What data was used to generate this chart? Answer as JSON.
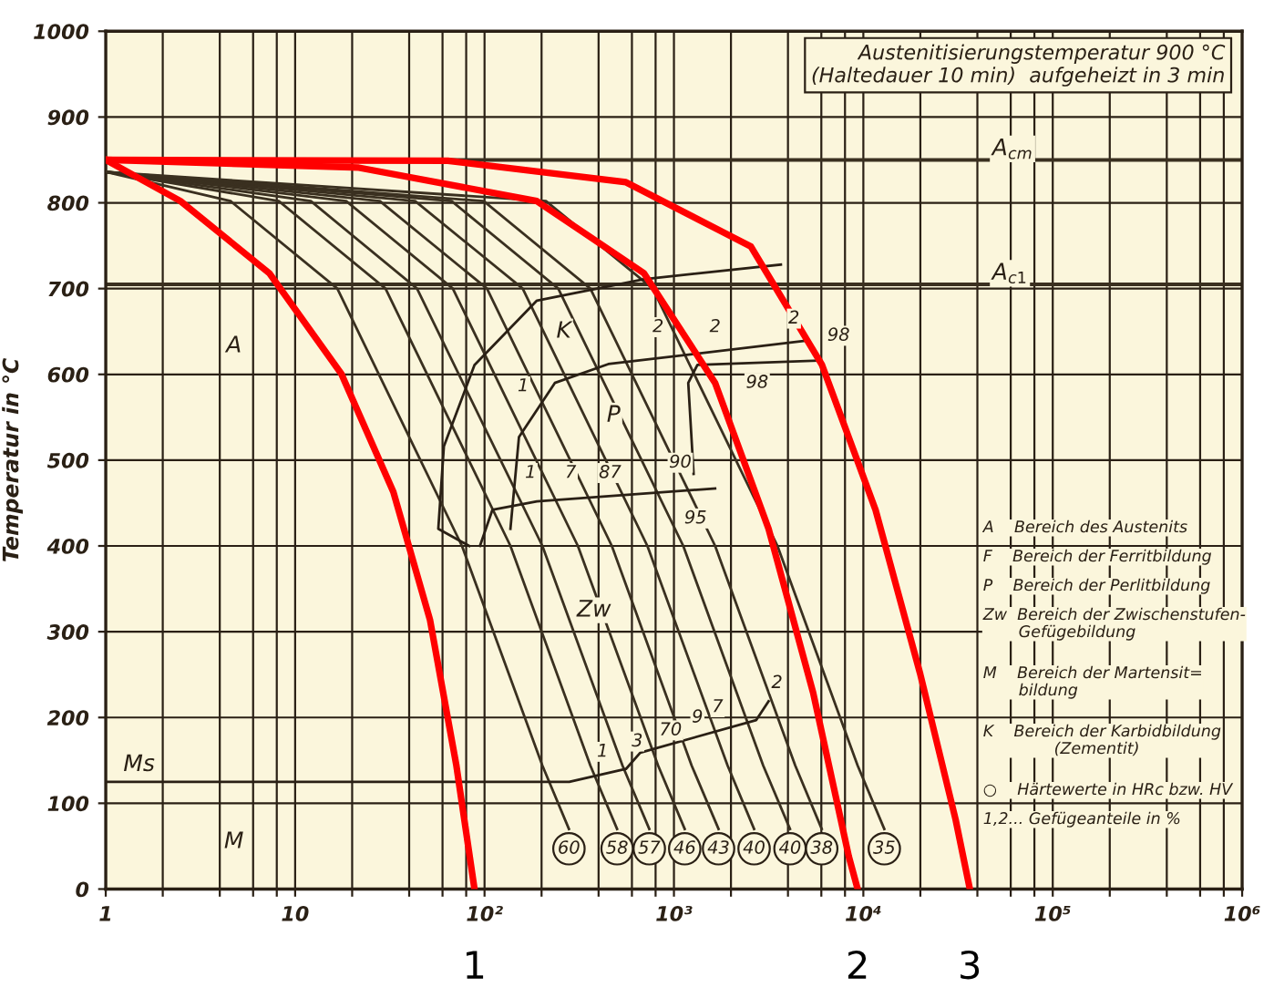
{
  "chart_data": {
    "type": "line",
    "ylabel": "Temperatur in °C",
    "log": "x",
    "grid": true,
    "legend": false,
    "xlim": [
      1,
      1000000
    ],
    "ylim": [
      0,
      1000
    ],
    "xticks": [
      1,
      {
        "value": 2,
        "label": null
      },
      {
        "value": 4,
        "label": null
      },
      {
        "value": 6,
        "label": null
      },
      {
        "value": 8,
        "label": null
      },
      10,
      {
        "value": 20,
        "label": null
      },
      {
        "value": 40,
        "label": null
      },
      {
        "value": 60,
        "label": null
      },
      {
        "value": 80,
        "label": null
      },
      {
        "value": 100,
        "label": "10²"
      },
      {
        "value": 200,
        "label": null
      },
      {
        "value": 400,
        "label": null
      },
      {
        "value": 600,
        "label": null
      },
      {
        "value": 800,
        "label": null
      },
      {
        "value": 1000,
        "label": "10³"
      },
      {
        "value": 2000,
        "label": null
      },
      {
        "value": 4000,
        "label": null
      },
      {
        "value": 6000,
        "label": null
      },
      {
        "value": 8000,
        "label": null
      },
      {
        "value": 10000,
        "label": "10⁴"
      },
      {
        "value": 20000,
        "label": null
      },
      {
        "value": 40000,
        "label": null
      },
      {
        "value": 60000,
        "label": null
      },
      {
        "value": 80000,
        "label": null
      },
      {
        "value": 100000,
        "label": "10⁵"
      },
      {
        "value": 200000,
        "label": null
      },
      {
        "value": 400000,
        "label": null
      },
      {
        "value": 600000,
        "label": null
      },
      {
        "value": 800000,
        "label": null
      },
      {
        "value": 1000000,
        "label": "10⁶"
      }
    ],
    "yticks": [
      0,
      100,
      200,
      300,
      400,
      500,
      600,
      700,
      800,
      900,
      1000
    ],
    "series": [
      {
        "color": "#3a3020",
        "x": [
          1,
          4.56,
          16.7,
          76,
          202,
          279
        ],
        "values": [
          836,
          802,
          700,
          400,
          144,
          70
        ]
      },
      {
        "color": "#3a3020",
        "x": [
          1,
          8.2,
          30,
          137,
          362,
          501
        ],
        "values": [
          836,
          802,
          700,
          400,
          144,
          70
        ]
      },
      {
        "color": "#3a3020",
        "x": [
          1,
          12.1,
          44,
          202,
          535,
          741
        ],
        "values": [
          836,
          802,
          700,
          400,
          144,
          70
        ]
      },
      {
        "color": "#3a3020",
        "x": [
          1,
          18.6,
          68,
          311,
          825,
          1140
        ],
        "values": [
          836,
          802,
          700,
          400,
          144,
          70
        ]
      },
      {
        "color": "#3a3020",
        "x": [
          1,
          28,
          103,
          470,
          1240,
          1720
        ],
        "values": [
          836,
          802,
          700,
          400,
          144,
          70
        ]
      },
      {
        "color": "#3a3020",
        "x": [
          1,
          43,
          159,
          724,
          1920,
          2650
        ],
        "values": [
          836,
          802,
          700,
          400,
          144,
          70
        ]
      },
      {
        "color": "#3a3020",
        "x": [
          1,
          67,
          245,
          1120,
          2960,
          4100
        ],
        "values": [
          836,
          802,
          700,
          400,
          144,
          70
        ]
      },
      {
        "color": "#3a3020",
        "x": [
          1,
          99,
          362,
          1650,
          4370,
          6030
        ],
        "values": [
          836,
          802,
          700,
          400,
          144,
          70
        ]
      },
      {
        "color": "#3a3020",
        "x": [
          1,
          211,
          773,
          3520,
          9330,
          12900
        ],
        "values": [
          836,
          802,
          700,
          400,
          144,
          70
        ]
      },
      {
        "color": "#2a2015",
        "x": [
          3670,
          694,
          189,
          88.5,
          61,
          57,
          83
        ],
        "values": [
          728,
          711,
          686,
          611,
          516,
          420,
          400
        ]
      },
      {
        "color": "#2a2015",
        "x": [
          137,
          152,
          235,
          450,
          4870
        ],
        "values": [
          420,
          527,
          590,
          612,
          639
        ]
      },
      {
        "color": "#2a2015",
        "x": [
          94.6,
          110,
          189,
          1650
        ],
        "values": [
          400,
          442,
          452,
          467
        ]
      },
      {
        "color": "#2a2015",
        "x": [
          5790,
          1330,
          1190,
          1270
        ],
        "values": [
          616,
          611,
          590,
          484
        ]
      },
      {
        "color": "#2a2015",
        "x": [
          1,
          280,
          558,
          664,
          2720,
          3160
        ],
        "values": [
          125,
          125,
          140,
          159,
          197,
          219
        ]
      },
      {
        "name": "1",
        "color": "#ff0000",
        "x": [
          1,
          2.48,
          7.3,
          17.5,
          33,
          51.5,
          71,
          88.5
        ],
        "values": [
          850,
          802,
          718,
          601,
          463,
          314,
          144,
          0
        ]
      },
      {
        "name": "2",
        "color": "#ff0000",
        "x": [
          1,
          21.7,
          189,
          694,
          1650,
          3160,
          5430,
          8380,
          9330
        ],
        "values": [
          850,
          841,
          802,
          718,
          590,
          420,
          229,
          38,
          0
        ]
      },
      {
        "name": "3",
        "color": "#ff0000",
        "x": [
          1,
          64,
          558,
          2550,
          6050,
          11600,
          19950,
          30700,
          36500
        ],
        "values": [
          850,
          849,
          824,
          749,
          611,
          442,
          251,
          81,
          0
        ]
      }
    ],
    "ref_lines": [
      {
        "axis": "y",
        "value": 850,
        "label": "A$_{cm}$",
        "color": "#3a3020"
      },
      {
        "axis": "y",
        "value": 705,
        "label": "A$_{c1}$",
        "color": "#3a3020"
      }
    ],
    "annotations": [
      "Austenitisierungstemperatur 900 °C\n(Haltedauer 10 min)  aufgeheizt in 3 min",
      "A    Bereich des Austenits",
      "F    Bereich der Ferritbildung",
      "P    Bereich der Perlitbildung",
      "Zw  Bereich der Zwischenstufen-\n       Gefügebildung",
      "M    Bereich der Martensit=\n       bildung",
      "K    Bereich der Karbidbildung\n              (Zementit)",
      "○    Härtewerte in HRc bzw. HV",
      "1,2... Gefügeanteile in %",
      "A",
      "K",
      "P",
      "Zw",
      "M",
      "Ms",
      "1",
      "1",
      "7",
      "87",
      "2",
      "2",
      "2",
      "98",
      "98",
      "90",
      "95",
      "2",
      "7",
      "9",
      "70",
      "3",
      "1",
      {
        "text": "60",
        "x": 279,
        "y": 47
      },
      {
        "text": "58",
        "x": 501,
        "y": 47
      },
      {
        "text": "57",
        "x": 741,
        "y": 47
      },
      {
        "text": "46",
        "x": 1140,
        "y": 47
      },
      {
        "text": "43",
        "x": 1720,
        "y": 47
      },
      {
        "text": "40",
        "x": 2650,
        "y": 47
      },
      {
        "text": "40",
        "x": 4100,
        "y": 47
      },
      {
        "text": "38",
        "x": 6030,
        "y": 47
      },
      {
        "text": "35",
        "x": 12900,
        "y": 47
      }
    ]
  }
}
